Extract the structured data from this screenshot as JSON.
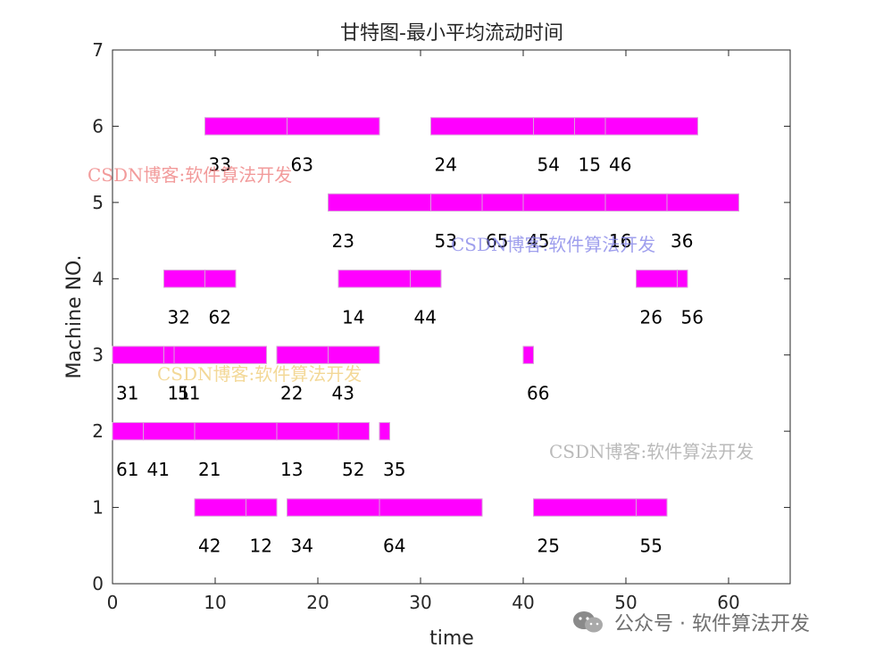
{
  "chart_data": {
    "type": "gantt",
    "title": "甘特图-最小平均流动时间",
    "xlabel": "time",
    "ylabel": "Machine NO.",
    "xlim": [
      0,
      66
    ],
    "ylim": [
      0,
      7
    ],
    "xticks": [
      "0",
      "10",
      "20",
      "30",
      "40",
      "50",
      "60"
    ],
    "yticks": [
      "0",
      "1",
      "2",
      "3",
      "4",
      "5",
      "6",
      "7"
    ],
    "bar_color": "#ff00ff",
    "tasks": [
      {
        "machine": 6,
        "start": 9,
        "end": 17,
        "label": "33"
      },
      {
        "machine": 6,
        "start": 17,
        "end": 26,
        "label": "63"
      },
      {
        "machine": 6,
        "start": 31,
        "end": 41,
        "label": "24"
      },
      {
        "machine": 6,
        "start": 41,
        "end": 45,
        "label": "54"
      },
      {
        "machine": 6,
        "start": 45,
        "end": 48,
        "label": "15"
      },
      {
        "machine": 6,
        "start": 48,
        "end": 57,
        "label": "46"
      },
      {
        "machine": 5,
        "start": 21,
        "end": 31,
        "label": "23"
      },
      {
        "machine": 5,
        "start": 31,
        "end": 36,
        "label": "53"
      },
      {
        "machine": 5,
        "start": 36,
        "end": 40,
        "label": "65"
      },
      {
        "machine": 5,
        "start": 40,
        "end": 48,
        "label": "45"
      },
      {
        "machine": 5,
        "start": 48,
        "end": 54,
        "label": "16"
      },
      {
        "machine": 5,
        "start": 54,
        "end": 61,
        "label": "36"
      },
      {
        "machine": 4,
        "start": 5,
        "end": 9,
        "label": "32"
      },
      {
        "machine": 4,
        "start": 9,
        "end": 12,
        "label": "62"
      },
      {
        "machine": 4,
        "start": 22,
        "end": 29,
        "label": "14"
      },
      {
        "machine": 4,
        "start": 29,
        "end": 32,
        "label": "44"
      },
      {
        "machine": 4,
        "start": 51,
        "end": 55,
        "label": "26"
      },
      {
        "machine": 4,
        "start": 55,
        "end": 56,
        "label": "56"
      },
      {
        "machine": 3,
        "start": 0,
        "end": 5,
        "label": "31"
      },
      {
        "machine": 3,
        "start": 5,
        "end": 6,
        "label": "11"
      },
      {
        "machine": 3,
        "start": 6,
        "end": 15,
        "label": "51"
      },
      {
        "machine": 3,
        "start": 16,
        "end": 21,
        "label": "22"
      },
      {
        "machine": 3,
        "start": 21,
        "end": 26,
        "label": "43"
      },
      {
        "machine": 3,
        "start": 40,
        "end": 41,
        "label": "66"
      },
      {
        "machine": 2,
        "start": 0,
        "end": 3,
        "label": "61"
      },
      {
        "machine": 2,
        "start": 3,
        "end": 8,
        "label": "41"
      },
      {
        "machine": 2,
        "start": 8,
        "end": 16,
        "label": "21"
      },
      {
        "machine": 2,
        "start": 16,
        "end": 22,
        "label": "13"
      },
      {
        "machine": 2,
        "start": 22,
        "end": 25,
        "label": "52"
      },
      {
        "machine": 2,
        "start": 26,
        "end": 27,
        "label": "35"
      },
      {
        "machine": 1,
        "start": 8,
        "end": 13,
        "label": "42"
      },
      {
        "machine": 1,
        "start": 13,
        "end": 16,
        "label": "12"
      },
      {
        "machine": 1,
        "start": 17,
        "end": 26,
        "label": "34"
      },
      {
        "machine": 1,
        "start": 26,
        "end": 36,
        "label": "64"
      },
      {
        "machine": 1,
        "start": 41,
        "end": 51,
        "label": "25"
      },
      {
        "machine": 1,
        "start": 51,
        "end": 54,
        "label": "55"
      }
    ]
  },
  "watermarks": {
    "w1": "CSDN博客:软件算法开发",
    "w2": "CSDN博客:软件算法开发",
    "w3": "CSDN博客:软件算法开发",
    "w4": "CSDN博客:软件算法开发"
  },
  "footer": {
    "text": "公众号 · 软件算法开发",
    "icon": "wechat-icon"
  }
}
